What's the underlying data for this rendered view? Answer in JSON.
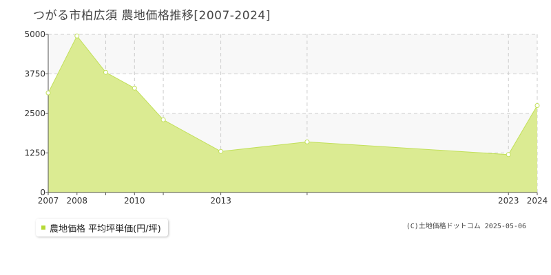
{
  "chart_data": {
    "type": "area",
    "title": "つがる市柏広須 農地価格推移[2007-2024]",
    "x": [
      2007,
      2008,
      2009,
      2010,
      2011,
      2013,
      2016,
      2023,
      2024
    ],
    "values": [
      3150,
      4950,
      3800,
      3300,
      2300,
      1300,
      1600,
      1200,
      2750
    ],
    "x_tick_labels": [
      "2007",
      "2008",
      "2010",
      "2013",
      "2023",
      "2024"
    ],
    "y_tick_labels": [
      "0",
      "1250",
      "2500",
      "3750",
      "5000"
    ],
    "ylim": [
      0,
      5000
    ],
    "series": [
      {
        "name": "農地価格 平均坪単価(円/坪)"
      }
    ],
    "legend_position": "bottom-left",
    "grid": true,
    "colors": {
      "fill": "#dbeb92",
      "line": "#c2e05a",
      "marker_fill": "#ffffff",
      "band": "#f8f8f8",
      "grid": "#cccccc",
      "legend_swatch": "#b5d935"
    }
  },
  "copyright": "(C)土地価格ドットコム 2025-05-06"
}
